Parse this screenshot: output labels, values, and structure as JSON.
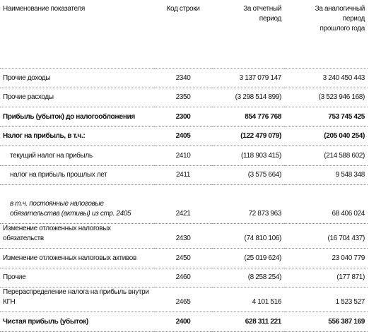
{
  "table": {
    "header": [
      [
        "Наименование показателя"
      ],
      [
        "Код строки"
      ],
      [
        "За отчетный",
        "период"
      ],
      [
        "За аналогичный",
        "период",
        "прошлого года"
      ]
    ],
    "rows": [
      {
        "cells": [
          "Прочие доходы",
          "2340",
          "3 137 079 147",
          "3 240 450 443"
        ]
      },
      {
        "cells": [
          "Прочие расходы",
          "2350",
          "(3 298 514 899)",
          "(3 523 946 168)"
        ]
      },
      {
        "cells": [
          "Прибыль (убыток) до налогообложения",
          "2300",
          "854 776 768",
          "753 745 425"
        ],
        "style": "bold"
      },
      {
        "cells": [
          "Налог на прибыль, в т.ч.:",
          "2405",
          "(122 479 079)",
          "(205 040 254)"
        ],
        "style": "bold"
      },
      {
        "cells": [
          "текущий налог на прибыль",
          "2410",
          "(118 903 415)",
          "(214 588 602)"
        ],
        "style": "indent"
      },
      {
        "cells": [
          "налог на прибыль прошлых лет",
          "2411",
          "(3 575 664)",
          "9 548 348"
        ],
        "style": "indent"
      },
      {
        "cells": [
          "в т.ч. постоянные налоговые обязательства (активы) из стр. 2405",
          "2421",
          "72 873 963",
          "68 406 024"
        ],
        "style": "italic"
      },
      {
        "cells": [
          "Изменение отложенных налоговых обязательств",
          "2430",
          "(74 810 106)",
          "(16 704 437)"
        ]
      },
      {
        "cells": [
          "Изменение отложенных налоговых активов",
          "2450",
          "(25 019 624)",
          "23 040 779"
        ]
      },
      {
        "cells": [
          "Прочие",
          "2460",
          "(8 258 254)",
          "(177 871)"
        ]
      },
      {
        "cells": [
          "Перераспределение налога на прибыль внутри КГН",
          "2465",
          "4 101 516",
          "1 523 527"
        ]
      },
      {
        "cells": [
          "Чистая прибыль (убыток)",
          "2400",
          "628 311 221",
          "556 387 169"
        ],
        "style": "bold"
      }
    ]
  }
}
